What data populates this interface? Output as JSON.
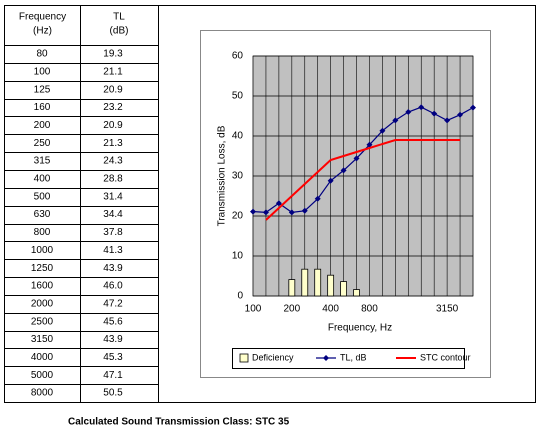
{
  "table": {
    "header": [
      [
        "Frequency",
        "(Hz)"
      ],
      [
        "TL",
        "(dB)"
      ]
    ],
    "rows": [
      [
        "80",
        "19.3"
      ],
      [
        "100",
        "21.1"
      ],
      [
        "125",
        "20.9"
      ],
      [
        "160",
        "23.2"
      ],
      [
        "200",
        "20.9"
      ],
      [
        "250",
        "21.3"
      ],
      [
        "315",
        "24.3"
      ],
      [
        "400",
        "28.8"
      ],
      [
        "500",
        "31.4"
      ],
      [
        "630",
        "34.4"
      ],
      [
        "800",
        "37.8"
      ],
      [
        "1000",
        "41.3"
      ],
      [
        "1250",
        "43.9"
      ],
      [
        "1600",
        "46.0"
      ],
      [
        "2000",
        "47.2"
      ],
      [
        "2500",
        "45.6"
      ],
      [
        "3150",
        "43.9"
      ],
      [
        "4000",
        "45.3"
      ],
      [
        "5000",
        "47.1"
      ],
      [
        "8000",
        "50.5"
      ]
    ]
  },
  "chart_data": {
    "type": "combo",
    "x_label": "Frequency, Hz",
    "y_label": "Transmission Loss, dB",
    "categories": [
      "100",
      null,
      null,
      "200",
      null,
      null,
      "400",
      null,
      null,
      "800",
      null,
      null,
      null,
      null,
      null,
      "3150",
      null,
      null
    ],
    "ylim": [
      0,
      60
    ],
    "yticks": [
      0,
      10,
      20,
      30,
      40,
      50,
      60
    ],
    "grid": true,
    "series": [
      {
        "name": "Deficiency",
        "type": "bar",
        "color": "#ffffcc",
        "values": [
          null,
          null,
          null,
          4.1,
          6.7,
          6.7,
          5.2,
          3.6,
          1.6,
          null,
          null,
          null,
          null,
          null,
          null,
          null,
          null,
          null
        ]
      },
      {
        "name": "TL, dB",
        "type": "line",
        "color": "#000080",
        "marker": "diamond",
        "values": [
          21.1,
          20.9,
          23.2,
          20.9,
          21.3,
          24.3,
          28.8,
          31.4,
          34.4,
          37.8,
          41.3,
          43.9,
          46.0,
          47.2,
          45.6,
          43.9,
          45.3,
          47.1
        ]
      },
      {
        "name": "STC contour",
        "type": "line",
        "color": "#ff0000",
        "values": [
          null,
          19,
          22,
          25,
          28,
          31,
          34,
          35,
          36,
          37,
          38,
          39,
          39,
          39,
          39,
          39,
          39,
          null
        ]
      }
    ]
  },
  "footer": "Calculated Sound Transmission Class:  STC  35"
}
